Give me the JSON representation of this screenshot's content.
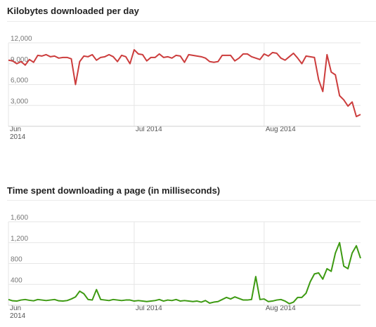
{
  "chart_data": [
    {
      "type": "line",
      "title": "Kilobytes downloaded per day",
      "ylim": [
        0,
        12000
      ],
      "yticks": [
        "12,000",
        "9,000",
        "6,000",
        "3,000"
      ],
      "ytick_values": [
        12000,
        9000,
        6000,
        3000
      ],
      "x_range": [
        "2014-06-01",
        "2014-08-24"
      ],
      "xticks": [
        {
          "date": "2014-06-01",
          "line1": "Jun",
          "line2": "2014"
        },
        {
          "date": "2014-07-01",
          "line1": "Jul 2014",
          "line2": ""
        },
        {
          "date": "2014-08-01",
          "line1": "Aug 2014",
          "line2": ""
        }
      ],
      "grid": true,
      "series": [
        {
          "color": "#cc3d3d",
          "x": [
            "2014-06-01",
            "2014-06-02",
            "2014-06-03",
            "2014-06-04",
            "2014-06-05",
            "2014-06-06",
            "2014-06-07",
            "2014-06-08",
            "2014-06-09",
            "2014-06-10",
            "2014-06-11",
            "2014-06-12",
            "2014-06-13",
            "2014-06-14",
            "2014-06-15",
            "2014-06-16",
            "2014-06-17",
            "2014-06-18",
            "2014-06-19",
            "2014-06-20",
            "2014-06-21",
            "2014-06-22",
            "2014-06-23",
            "2014-06-24",
            "2014-06-25",
            "2014-06-26",
            "2014-06-27",
            "2014-06-28",
            "2014-06-29",
            "2014-06-30",
            "2014-07-01",
            "2014-07-02",
            "2014-07-03",
            "2014-07-04",
            "2014-07-05",
            "2014-07-06",
            "2014-07-07",
            "2014-07-08",
            "2014-07-09",
            "2014-07-10",
            "2014-07-11",
            "2014-07-12",
            "2014-07-13",
            "2014-07-14",
            "2014-07-15",
            "2014-07-16",
            "2014-07-17",
            "2014-07-18",
            "2014-07-19",
            "2014-07-20",
            "2014-07-21",
            "2014-07-22",
            "2014-07-23",
            "2014-07-24",
            "2014-07-25",
            "2014-07-26",
            "2014-07-27",
            "2014-07-28",
            "2014-07-29",
            "2014-07-30",
            "2014-07-31",
            "2014-08-01",
            "2014-08-02",
            "2014-08-03",
            "2014-08-04",
            "2014-08-05",
            "2014-08-06",
            "2014-08-07",
            "2014-08-08",
            "2014-08-09",
            "2014-08-10",
            "2014-08-11",
            "2014-08-12",
            "2014-08-13",
            "2014-08-14",
            "2014-08-15",
            "2014-08-16",
            "2014-08-17",
            "2014-08-18",
            "2014-08-19",
            "2014-08-20",
            "2014-08-21",
            "2014-08-22",
            "2014-08-23",
            "2014-08-24"
          ],
          "values": [
            9500,
            9400,
            9000,
            9300,
            8800,
            9600,
            9200,
            10200,
            10100,
            10300,
            10000,
            10100,
            9800,
            9900,
            9900,
            9700,
            6000,
            9300,
            10100,
            10000,
            10300,
            9500,
            9900,
            10000,
            10300,
            10000,
            9300,
            10200,
            10000,
            9000,
            11000,
            10400,
            10300,
            9400,
            9900,
            9900,
            10400,
            9900,
            10000,
            9800,
            10200,
            10100,
            9200,
            10300,
            10200,
            10100,
            10000,
            9800,
            9300,
            9200,
            9300,
            10200,
            10200,
            10200,
            9400,
            9800,
            10400,
            10400,
            10000,
            9800,
            9600,
            10400,
            10100,
            10600,
            10500,
            9800,
            9500,
            10000,
            10500,
            9800,
            9000,
            10100,
            10000,
            9900,
            6700,
            5000,
            10300,
            7800,
            7400,
            4400,
            3800,
            2900,
            3500,
            1400,
            1700
          ]
        }
      ]
    },
    {
      "type": "line",
      "title": "Time spent downloading a page (in milliseconds)",
      "ylim": [
        0,
        1600
      ],
      "yticks": [
        "1,600",
        "1,200",
        "800",
        "400"
      ],
      "ytick_values": [
        1600,
        1200,
        800,
        400
      ],
      "x_range": [
        "2014-06-01",
        "2014-08-24"
      ],
      "xticks": [
        {
          "date": "2014-06-01",
          "line1": "Jun",
          "line2": "2014"
        },
        {
          "date": "2014-07-01",
          "line1": "Jul 2014",
          "line2": ""
        },
        {
          "date": "2014-08-01",
          "line1": "Aug 2014",
          "line2": ""
        }
      ],
      "grid": true,
      "series": [
        {
          "color": "#3d9a12",
          "x": [
            "2014-06-01",
            "2014-06-02",
            "2014-06-03",
            "2014-06-04",
            "2014-06-05",
            "2014-06-06",
            "2014-06-07",
            "2014-06-08",
            "2014-06-09",
            "2014-06-10",
            "2014-06-11",
            "2014-06-12",
            "2014-06-13",
            "2014-06-14",
            "2014-06-15",
            "2014-06-16",
            "2014-06-17",
            "2014-06-18",
            "2014-06-19",
            "2014-06-20",
            "2014-06-21",
            "2014-06-22",
            "2014-06-23",
            "2014-06-24",
            "2014-06-25",
            "2014-06-26",
            "2014-06-27",
            "2014-06-28",
            "2014-06-29",
            "2014-06-30",
            "2014-07-01",
            "2014-07-02",
            "2014-07-03",
            "2014-07-04",
            "2014-07-05",
            "2014-07-06",
            "2014-07-07",
            "2014-07-08",
            "2014-07-09",
            "2014-07-10",
            "2014-07-11",
            "2014-07-12",
            "2014-07-13",
            "2014-07-14",
            "2014-07-15",
            "2014-07-16",
            "2014-07-17",
            "2014-07-18",
            "2014-07-19",
            "2014-07-20",
            "2014-07-21",
            "2014-07-22",
            "2014-07-23",
            "2014-07-24",
            "2014-07-25",
            "2014-07-26",
            "2014-07-27",
            "2014-07-28",
            "2014-07-29",
            "2014-07-30",
            "2014-07-31",
            "2014-08-01",
            "2014-08-02",
            "2014-08-03",
            "2014-08-04",
            "2014-08-05",
            "2014-08-06",
            "2014-08-07",
            "2014-08-08",
            "2014-08-09",
            "2014-08-10",
            "2014-08-11",
            "2014-08-12",
            "2014-08-13",
            "2014-08-14",
            "2014-08-15",
            "2014-08-16",
            "2014-08-17",
            "2014-08-18",
            "2014-08-19",
            "2014-08-20",
            "2014-08-21",
            "2014-08-22",
            "2014-08-23",
            "2014-08-24"
          ],
          "values": [
            110,
            85,
            80,
            100,
            110,
            95,
            85,
            110,
            100,
            90,
            100,
            110,
            85,
            80,
            90,
            120,
            160,
            270,
            220,
            110,
            100,
            300,
            110,
            100,
            90,
            110,
            100,
            90,
            100,
            100,
            80,
            90,
            80,
            70,
            80,
            90,
            110,
            80,
            100,
            90,
            110,
            80,
            90,
            80,
            70,
            80,
            60,
            90,
            40,
            60,
            70,
            110,
            150,
            120,
            160,
            130,
            100,
            100,
            110,
            550,
            110,
            120,
            70,
            80,
            100,
            110,
            80,
            30,
            60,
            150,
            150,
            230,
            450,
            600,
            620,
            500,
            700,
            650,
            1000,
            1200,
            750,
            700,
            1000,
            1140,
            900
          ]
        }
      ]
    }
  ]
}
